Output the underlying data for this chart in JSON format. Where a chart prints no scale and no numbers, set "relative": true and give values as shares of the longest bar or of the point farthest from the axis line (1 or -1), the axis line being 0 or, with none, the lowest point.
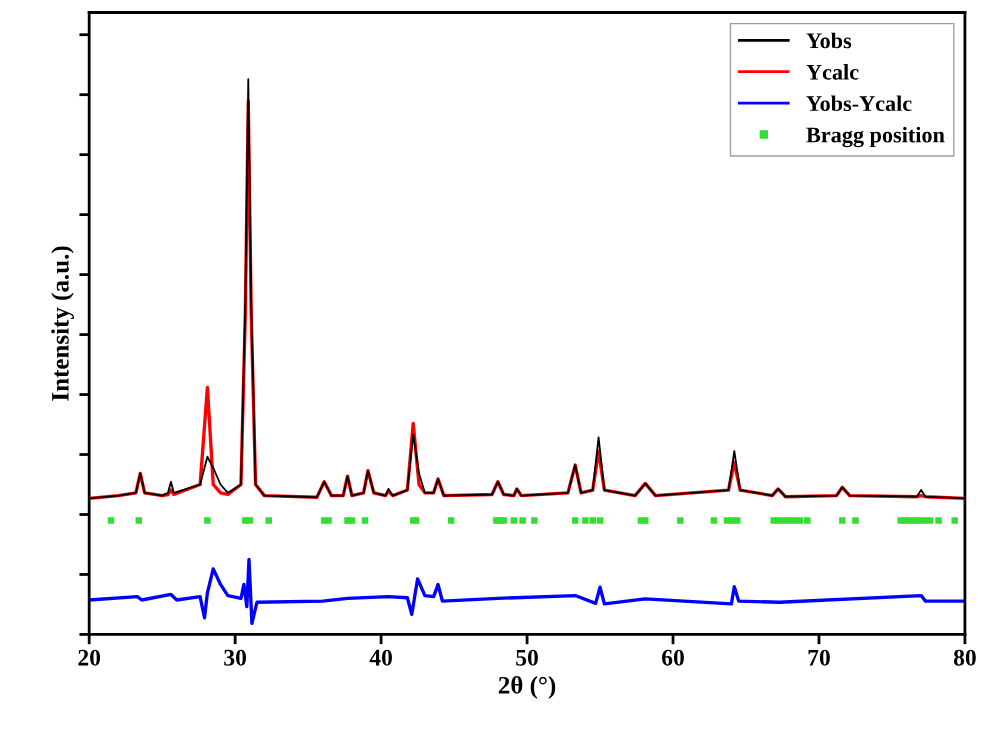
{
  "chart_data": {
    "type": "line",
    "xlabel": "2θ (°)",
    "ylabel": "Intensity (a.u.)",
    "relative": true,
    "xlim": [
      20,
      80
    ],
    "xticks": [
      20,
      30,
      40,
      50,
      60,
      70,
      80
    ],
    "grid": false,
    "legend": "top right",
    "tick_labels": "x",
    "line_style": "solid",
    "marker": "none",
    "x": [
      20,
      22,
      23.2,
      23.5,
      23.8,
      25,
      25.4,
      25.6,
      25.8,
      27.6,
      28.1,
      28.5,
      29,
      29.5,
      30.4,
      30.7,
      30.9,
      31.1,
      31.4,
      32,
      35.6,
      36.1,
      36.6,
      37.4,
      37.7,
      38.0,
      38.8,
      39.1,
      39.5,
      40.3,
      40.5,
      40.8,
      41.8,
      42.2,
      42.6,
      43.0,
      43.6,
      43.9,
      44.3,
      47.6,
      48.0,
      48.4,
      49.1,
      49.3,
      49.6,
      52.8,
      53.3,
      53.7,
      54.5,
      54.9,
      55.3,
      57.4,
      58.1,
      58.8,
      63.8,
      64.2,
      64.6,
      66.8,
      67.2,
      67.7,
      71.2,
      71.6,
      72.1,
      76.7,
      77.0,
      77.3,
      80
    ],
    "series": [
      {
        "name": "Yobs",
        "color": "#000000",
        "values": [
          0.245,
          0.25,
          0.255,
          0.29,
          0.255,
          0.25,
          0.255,
          0.275,
          0.255,
          0.27,
          0.32,
          0.3,
          0.27,
          0.255,
          0.27,
          0.6,
          1.0,
          0.6,
          0.27,
          0.25,
          0.247,
          0.275,
          0.25,
          0.25,
          0.285,
          0.25,
          0.255,
          0.295,
          0.255,
          0.25,
          0.262,
          0.25,
          0.26,
          0.36,
          0.29,
          0.255,
          0.255,
          0.28,
          0.25,
          0.252,
          0.275,
          0.252,
          0.25,
          0.262,
          0.25,
          0.255,
          0.305,
          0.255,
          0.26,
          0.355,
          0.26,
          0.25,
          0.272,
          0.25,
          0.26,
          0.33,
          0.26,
          0.25,
          0.262,
          0.248,
          0.25,
          0.265,
          0.25,
          0.248,
          0.26,
          0.248,
          0.245
        ]
      },
      {
        "name": "Ycalc",
        "color": "#ff0000",
        "values": [
          0.245,
          0.25,
          0.255,
          0.29,
          0.255,
          0.25,
          0.252,
          0.26,
          0.252,
          0.27,
          0.445,
          0.27,
          0.255,
          0.252,
          0.27,
          0.58,
          0.96,
          0.58,
          0.27,
          0.25,
          0.247,
          0.275,
          0.25,
          0.25,
          0.285,
          0.25,
          0.255,
          0.295,
          0.255,
          0.25,
          0.258,
          0.25,
          0.26,
          0.38,
          0.27,
          0.255,
          0.255,
          0.28,
          0.25,
          0.252,
          0.275,
          0.252,
          0.25,
          0.262,
          0.25,
          0.255,
          0.305,
          0.255,
          0.26,
          0.33,
          0.26,
          0.25,
          0.272,
          0.25,
          0.26,
          0.31,
          0.26,
          0.25,
          0.262,
          0.248,
          0.25,
          0.265,
          0.25,
          0.248,
          0.25,
          0.248,
          0.245
        ]
      },
      {
        "name": "Yobs-Ycalc",
        "color": "#0000ff",
        "x": [
          20,
          23.3,
          23.6,
          25.6,
          26,
          27.6,
          27.9,
          28.1,
          28.5,
          29,
          29.5,
          30.4,
          30.6,
          30.8,
          30.95,
          31.15,
          31.5,
          36,
          37.7,
          40.5,
          41.8,
          42.1,
          42.5,
          43.0,
          43.6,
          43.9,
          44.2,
          48,
          53.3,
          54.7,
          55.0,
          55.3,
          58.1,
          64.0,
          64.2,
          64.5,
          67.3,
          77,
          77.3,
          80
        ],
        "values": [
          0.062,
          0.068,
          0.062,
          0.072,
          0.062,
          0.068,
          0.03,
          0.075,
          0.118,
          0.09,
          0.07,
          0.065,
          0.09,
          0.05,
          0.135,
          0.02,
          0.058,
          0.06,
          0.065,
          0.068,
          0.066,
          0.036,
          0.1,
          0.07,
          0.068,
          0.09,
          0.06,
          0.065,
          0.07,
          0.056,
          0.085,
          0.055,
          0.064,
          0.055,
          0.086,
          0.06,
          0.058,
          0.07,
          0.06,
          0.06
        ]
      },
      {
        "name": "Bragg position",
        "color": "#33dd33",
        "type": "scatter",
        "marker": "square",
        "x": [
          21.5,
          23.4,
          28.1,
          30.7,
          31.0,
          32.3,
          36.1,
          36.4,
          37.7,
          38.0,
          38.9,
          42.2,
          42.4,
          44.8,
          47.9,
          48.1,
          48.4,
          49.1,
          49.7,
          50.5,
          53.3,
          54.0,
          54.5,
          55.0,
          57.8,
          58.1,
          60.5,
          62.8,
          63.7,
          64.0,
          64.4,
          66.9,
          67.2,
          67.6,
          68.0,
          68.3,
          68.7,
          69.2,
          71.6,
          72.5,
          75.6,
          75.9,
          76.2,
          76.5,
          76.8,
          77.2,
          77.6,
          78.2,
          79.3
        ],
        "values": [
          0.205,
          0.205,
          0.205,
          0.205,
          0.205,
          0.205,
          0.205,
          0.205,
          0.205,
          0.205,
          0.205,
          0.205,
          0.205,
          0.205,
          0.205,
          0.205,
          0.205,
          0.205,
          0.205,
          0.205,
          0.205,
          0.205,
          0.205,
          0.205,
          0.205,
          0.205,
          0.205,
          0.205,
          0.205,
          0.205,
          0.205,
          0.205,
          0.205,
          0.205,
          0.205,
          0.205,
          0.205,
          0.205,
          0.205,
          0.205,
          0.205,
          0.205,
          0.205,
          0.205,
          0.205,
          0.205,
          0.205,
          0.205,
          0.205
        ]
      }
    ]
  }
}
